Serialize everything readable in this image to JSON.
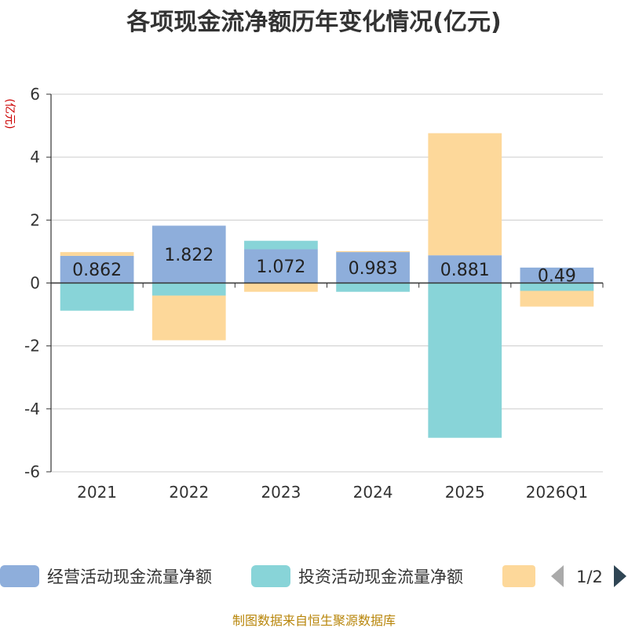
{
  "chart_data": {
    "type": "bar",
    "stacked": true,
    "title": "各项现金流净额历年变化情况(亿元)",
    "ylabel": "(亿元)",
    "ylim": [
      -6,
      6
    ],
    "yticks": [
      -6,
      -4,
      -2,
      0,
      2,
      4,
      6
    ],
    "grid": true,
    "categories": [
      "2021",
      "2022",
      "2023",
      "2024",
      "2025",
      "2026Q1"
    ],
    "series": [
      {
        "name": "经营活动现金流量净额",
        "color": "#8eaedb",
        "values": [
          0.862,
          1.822,
          1.072,
          0.983,
          0.881,
          0.49
        ]
      },
      {
        "name": "投资活动现金流量净额",
        "color": "#88d4d8",
        "values": [
          -0.88,
          -0.4,
          0.27,
          -0.28,
          -4.92,
          -0.25
        ]
      },
      {
        "name": "",
        "color": "#fdd89a",
        "values": [
          0.12,
          -1.42,
          -0.28,
          0.03,
          3.88,
          -0.5
        ]
      }
    ],
    "data_labels": [
      "0.862",
      "1.822",
      "1.072",
      "0.983",
      "0.881",
      "0.49"
    ],
    "legend_position": "bottom"
  },
  "legend": {
    "page": "1/2"
  },
  "source": "制图数据来自恒生聚源数据库"
}
